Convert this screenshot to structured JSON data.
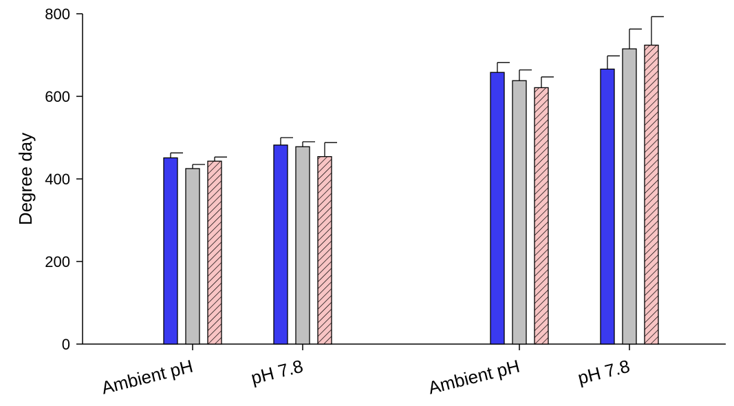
{
  "chart_data": {
    "type": "bar",
    "title": "",
    "xlabel": "",
    "ylabel": "Degree day",
    "ylim": [
      0,
      800
    ],
    "yticks": [
      0,
      200,
      400,
      600,
      800
    ],
    "grid": false,
    "categories": [
      "Ambient pH",
      "pH 7.8",
      "Ambient pH",
      "pH 7.8"
    ],
    "series": [
      {
        "color": "#3a3af0",
        "pattern": "solid",
        "values": [
          451,
          482,
          658,
          666
        ],
        "errors": [
          12,
          18,
          24,
          32
        ]
      },
      {
        "color": "#c0c0c0",
        "pattern": "solid",
        "values": [
          425,
          478,
          638,
          715
        ],
        "errors": [
          10,
          12,
          26,
          48
        ]
      },
      {
        "color": "#f8c4c4",
        "pattern": "diagonal-hatch",
        "values": [
          443,
          454,
          621,
          724
        ],
        "errors": [
          10,
          34,
          26,
          69
        ]
      }
    ]
  }
}
